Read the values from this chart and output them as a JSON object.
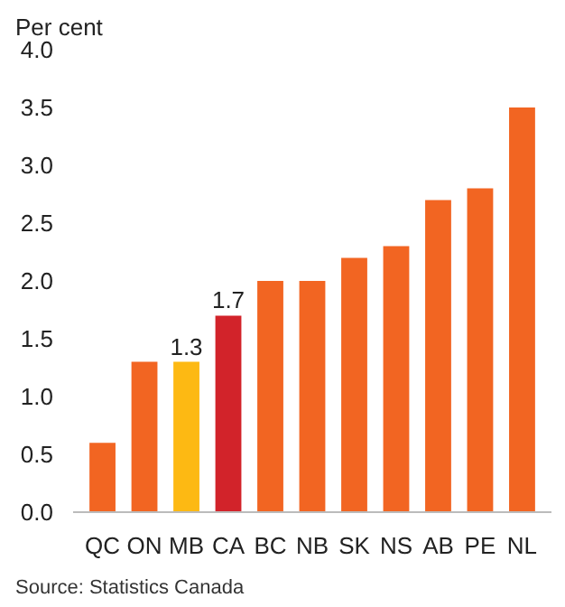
{
  "chart_data": {
    "type": "bar",
    "ylabel": "Per cent",
    "categories": [
      "QC",
      "ON",
      "MB",
      "CA",
      "BC",
      "NB",
      "SK",
      "NS",
      "AB",
      "PE",
      "NL"
    ],
    "values": [
      0.6,
      1.3,
      1.3,
      1.7,
      2.0,
      2.0,
      2.2,
      2.3,
      2.7,
      2.8,
      3.5
    ],
    "colors": [
      "#f26522",
      "#f26522",
      "#fdb913",
      "#d2232a",
      "#f26522",
      "#f26522",
      "#f26522",
      "#f26522",
      "#f26522",
      "#f26522",
      "#f26522"
    ],
    "value_labels": [
      null,
      null,
      "1.3",
      "1.7",
      null,
      null,
      null,
      null,
      null,
      null,
      null
    ],
    "ylim": [
      0,
      4.0
    ],
    "yticks": [
      {
        "value": 0,
        "label": "0.0"
      },
      {
        "value": 0.5,
        "label": "0.5"
      },
      {
        "value": 1,
        "label": "1.0"
      },
      {
        "value": 1.5,
        "label": "1.5"
      },
      {
        "value": 2,
        "label": "2.0"
      },
      {
        "value": 2.5,
        "label": "2.5"
      },
      {
        "value": 3,
        "label": "3.0"
      },
      {
        "value": 3.5,
        "label": "3.5"
      },
      {
        "value": 4,
        "label": "4.0"
      }
    ],
    "grid": false,
    "annotations": [
      "Source: Statistics Canada"
    ]
  }
}
